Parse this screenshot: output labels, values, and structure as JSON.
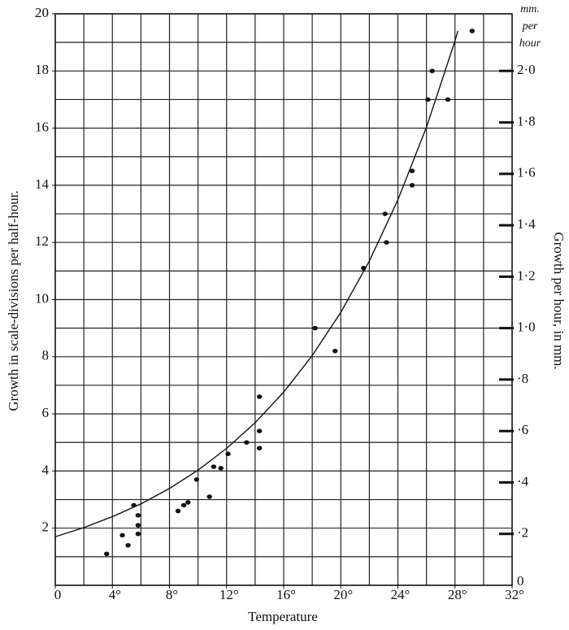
{
  "chart_data": {
    "type": "scatter",
    "xlabel": "Temperature",
    "ylabel": "Growth in scale-divisions per half-hour.",
    "y2label": "Growth per hour, in mm.",
    "y2unit": [
      "mm.",
      "per",
      "hour"
    ],
    "xlim": [
      0,
      32
    ],
    "ylim": [
      0,
      20
    ],
    "y2lim": [
      0,
      2.2222
    ],
    "xticks": [
      0,
      {
        "value": 4,
        "label": "4°"
      },
      {
        "value": 8,
        "label": "8°"
      },
      {
        "value": 12,
        "label": "12°"
      },
      {
        "value": 16,
        "label": "16°"
      },
      {
        "value": 20,
        "label": "20°"
      },
      {
        "value": 24,
        "label": "24°"
      },
      {
        "value": 28,
        "label": "28°"
      },
      {
        "value": 32,
        "label": "32°"
      }
    ],
    "yticks": [
      2,
      4,
      6,
      8,
      10,
      12,
      14,
      16,
      18,
      20
    ],
    "y2ticks": [
      0,
      {
        "value": 0.2,
        "label": "·2"
      },
      {
        "value": 0.4,
        "label": "·4"
      },
      {
        "value": 0.6,
        "label": "·6"
      },
      {
        "value": 0.8,
        "label": "·8"
      },
      {
        "value": 1.0,
        "label": "1·0"
      },
      {
        "value": 1.2,
        "label": "1·2"
      },
      {
        "value": 1.4,
        "label": "1·4"
      },
      {
        "value": 1.6,
        "label": "1·6"
      },
      {
        "value": 1.8,
        "label": "1·8"
      },
      {
        "value": 2.0,
        "label": "2·0"
      }
    ],
    "xgrid": [
      2,
      4,
      6,
      8,
      10,
      12,
      14,
      16,
      18,
      20,
      22,
      24,
      26,
      28,
      30
    ],
    "ygrid": [
      1,
      2,
      3,
      4,
      5,
      6,
      7,
      8,
      9,
      10,
      11,
      12,
      13,
      14,
      15,
      16,
      17,
      18,
      19
    ],
    "grid": true,
    "series": [
      {
        "mode": "markers",
        "color": "#111111",
        "x": [
          3.6,
          4.7,
          5.1,
          5.5,
          5.8,
          5.8,
          5.8,
          8.6,
          9.0,
          9.3,
          9.9,
          10.8,
          11.1,
          11.6,
          12.1,
          13.4,
          14.3,
          14.3,
          14.3,
          18.2,
          19.6,
          21.6,
          23.1,
          23.2,
          25.0,
          25.0,
          26.1,
          26.4,
          27.5,
          29.2
        ],
        "values": [
          1.1,
          1.75,
          1.4,
          2.8,
          2.45,
          2.1,
          1.8,
          2.6,
          2.8,
          2.9,
          3.7,
          3.1,
          4.15,
          4.1,
          4.6,
          5.0,
          6.6,
          5.4,
          4.8,
          9.0,
          8.2,
          11.1,
          13.0,
          12.0,
          14.5,
          14.0,
          17.0,
          18.0,
          17.0,
          19.4
        ]
      },
      {
        "mode": "lines",
        "color": "#111111",
        "x": [
          0,
          2,
          4,
          6,
          8,
          10,
          12,
          14,
          16,
          18,
          20,
          22,
          24,
          26,
          28,
          28.2
        ],
        "values": [
          1.7,
          2.02,
          2.4,
          2.85,
          3.39,
          4.03,
          4.79,
          5.69,
          6.76,
          8.04,
          9.55,
          11.35,
          13.49,
          16.03,
          19.05,
          19.4
        ]
      }
    ]
  }
}
